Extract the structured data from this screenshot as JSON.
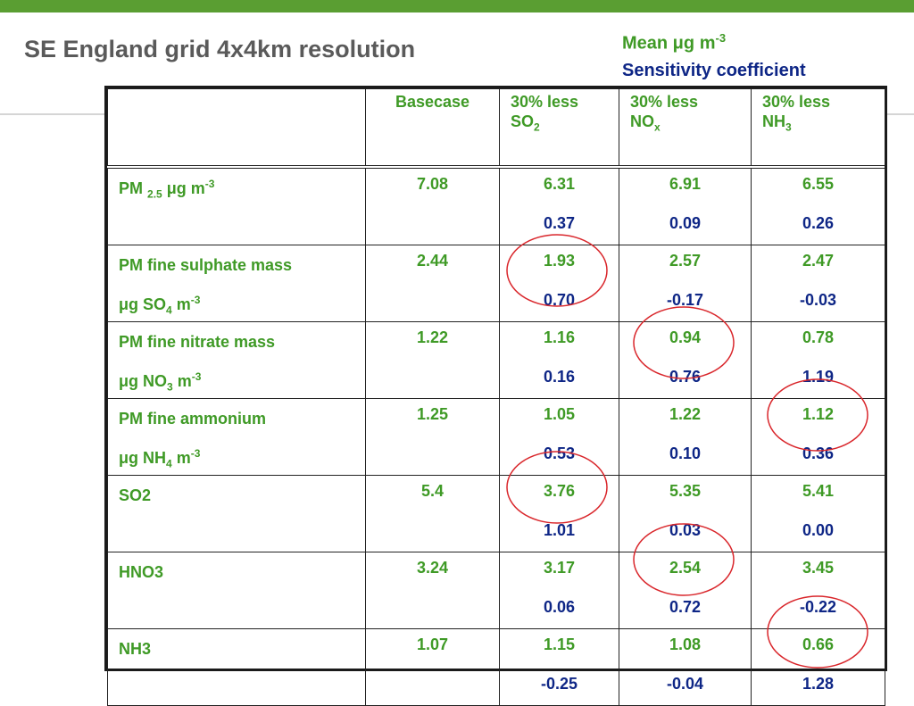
{
  "title": "SE England grid 4x4km resolution",
  "legend": {
    "mean_label": "Mean μg  m",
    "mean_sup": "-3",
    "sensitivity_label": "Sensitivity coefficient"
  },
  "colors": {
    "accent_bar": "#5a9e32",
    "mean_text": "#3f9a26",
    "sensitivity_text": "#0e2686",
    "circle": "#d9262b"
  },
  "table": {
    "headers": {
      "basecase": "Basecase",
      "so2_line1": "30% less",
      "so2_base": "SO",
      "so2_sub": "2",
      "nox_line1": "30% less",
      "nox_base": "NO",
      "nox_sub": "x",
      "nh3_line1": "30% less",
      "nh3_base": "NH",
      "nh3_sub": "3"
    },
    "rows": [
      {
        "l1_a": "PM ",
        "l1_sub": "2.5",
        "l1_b": "  μg  m",
        "l1_sup": "-3",
        "l2_a": "",
        "l2_sub": "",
        "l2_b": "",
        "l2_sup": "",
        "base": "7.08",
        "so2_mean": "6.31",
        "so2_sens": "0.37",
        "nox_mean": "6.91",
        "nox_sens": "0.09",
        "nh3_mean": "6.55",
        "nh3_sens": "0.26"
      },
      {
        "l1_a": "PM fine sulphate mass",
        "l1_sub": "",
        "l1_b": "",
        "l1_sup": "",
        "l2_a": "μg SO",
        "l2_sub": "4",
        "l2_b": " m",
        "l2_sup": "-3",
        "base": "2.44",
        "so2_mean": "1.93",
        "so2_sens": "0.70",
        "nox_mean": "2.57",
        "nox_sens": "-0.17",
        "nh3_mean": "2.47",
        "nh3_sens": "-0.03"
      },
      {
        "l1_a": "PM fine nitrate mass",
        "l1_sub": "",
        "l1_b": "",
        "l1_sup": "",
        "l2_a": "μg NO",
        "l2_sub": "3",
        "l2_b": " m",
        "l2_sup": "-3",
        "base": "1.22",
        "so2_mean": "1.16",
        "so2_sens": "0.16",
        "nox_mean": "0.94",
        "nox_sens": "0.76",
        "nh3_mean": "0.78",
        "nh3_sens": "1.19"
      },
      {
        "l1_a": "PM fine ammonium",
        "l1_sub": "",
        "l1_b": "",
        "l1_sup": "",
        "l2_a": "μg NH",
        "l2_sub": "4",
        "l2_b": " m",
        "l2_sup": "-3",
        "base": "1.25",
        "so2_mean": "1.05",
        "so2_sens": "0.53",
        "nox_mean": "1.22",
        "nox_sens": "0.10",
        "nh3_mean": "1.12",
        "nh3_sens": "0.36"
      },
      {
        "l1_a": "SO2",
        "l1_sub": "",
        "l1_b": "",
        "l1_sup": "",
        "l2_a": "",
        "l2_sub": "",
        "l2_b": "",
        "l2_sup": "",
        "base": "5.4",
        "so2_mean": "3.76",
        "so2_sens": "1.01",
        "nox_mean": "5.35",
        "nox_sens": "0.03",
        "nh3_mean": "5.41",
        "nh3_sens": "0.00"
      },
      {
        "l1_a": "HNO3",
        "l1_sub": "",
        "l1_b": "",
        "l1_sup": "",
        "l2_a": "",
        "l2_sub": "",
        "l2_b": "",
        "l2_sup": "",
        "base": "3.24",
        "so2_mean": "3.17",
        "so2_sens": "0.06",
        "nox_mean": "2.54",
        "nox_sens": "0.72",
        "nh3_mean": "3.45",
        "nh3_sens": "-0.22"
      },
      {
        "l1_a": "NH3",
        "l1_sub": "",
        "l1_b": "",
        "l1_sup": "",
        "l2_a": "",
        "l2_sub": "",
        "l2_b": "",
        "l2_sup": "",
        "base": "1.07",
        "so2_mean": "1.15",
        "so2_sens": "-0.25",
        "nox_mean": "1.08",
        "nox_sens": "-0.04",
        "nh3_mean": "0.66",
        "nh3_sens": "1.28"
      }
    ]
  }
}
